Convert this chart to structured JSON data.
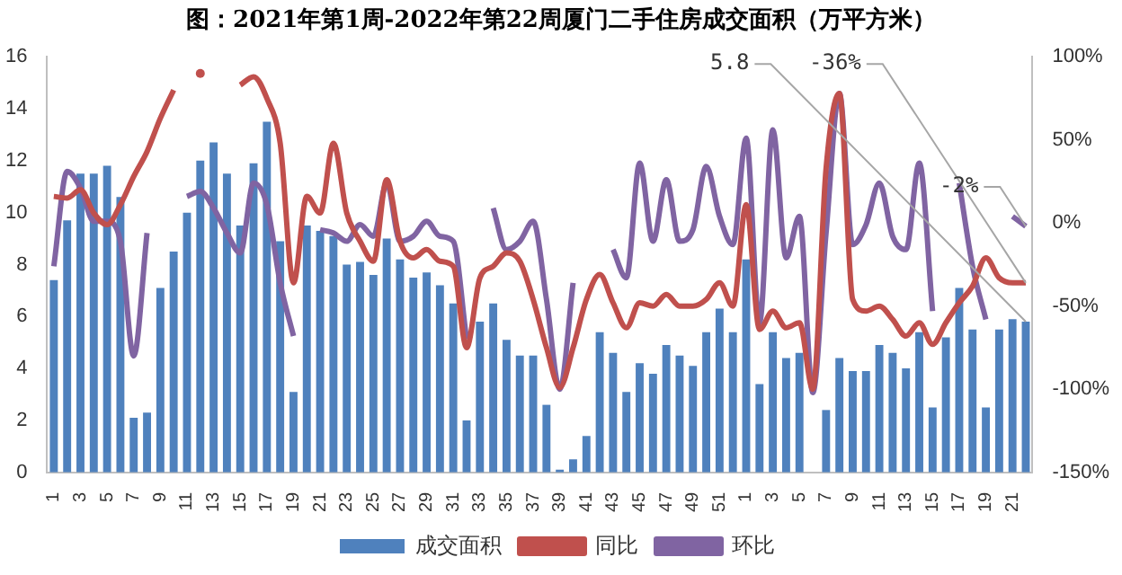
{
  "chart_data": {
    "type": "bar",
    "title": "图：2021年第1周-2022年第22周厦门二手住房成交面积（万平方米）",
    "categories": [
      "1",
      null,
      "3",
      null,
      "5",
      null,
      "7",
      null,
      "9",
      null,
      "11",
      null,
      "13",
      null,
      "15",
      null,
      "17",
      null,
      "19",
      null,
      "21",
      null,
      "23",
      null,
      "25",
      null,
      "27",
      null,
      "29",
      null,
      "31",
      null,
      "33",
      null,
      "35",
      null,
      "37",
      null,
      "39",
      null,
      "41",
      null,
      "43",
      null,
      "45",
      null,
      "47",
      null,
      "49",
      null,
      "51",
      null,
      "1",
      null,
      "3",
      null,
      "5",
      null,
      "7",
      null,
      "9",
      null,
      "11",
      null,
      "13",
      null,
      "15",
      null,
      "17",
      null,
      "19",
      null,
      "21",
      null
    ],
    "series": [
      {
        "name": "成交面积",
        "color": "#4f81bd",
        "values": [
          7.4,
          9.7,
          11.5,
          11.5,
          11.8,
          10.6,
          2.1,
          2.3,
          7.1,
          8.5,
          10.0,
          12.0,
          12.7,
          11.5,
          9.5,
          11.9,
          13.5,
          8.9,
          3.1,
          9.5,
          9.3,
          9.1,
          8.0,
          8.1,
          7.6,
          9.0,
          8.2,
          7.5,
          7.7,
          7.2,
          6.5,
          2.0,
          5.8,
          6.5,
          5.1,
          4.5,
          4.5,
          2.6,
          0.1,
          0.5,
          1.4,
          5.4,
          4.6,
          3.1,
          4.2,
          3.8,
          4.9,
          4.5,
          4.1,
          5.4,
          6.3,
          5.4,
          8.2,
          3.4,
          5.4,
          4.4,
          4.6,
          0,
          2.4,
          4.4,
          3.9,
          3.9,
          4.9,
          4.6,
          4.0,
          5.4,
          2.5,
          5.2,
          7.1,
          5.5,
          2.5,
          5.5,
          5.9,
          5.8
        ],
        "value_labels": [
          null,
          null,
          null,
          null,
          null,
          null,
          null,
          null,
          null,
          null,
          null,
          null,
          null,
          null,
          null,
          null,
          null,
          null,
          null,
          null,
          null,
          null,
          null,
          null,
          null,
          null,
          null,
          null,
          null,
          null,
          null,
          null,
          null,
          null,
          null,
          null,
          null,
          null,
          null,
          null,
          null,
          null,
          null,
          null,
          null,
          null,
          null,
          null,
          null,
          null,
          null,
          null,
          null,
          null,
          null,
          null,
          null,
          null,
          null,
          null,
          null,
          null,
          null,
          null,
          null,
          null,
          null,
          null,
          null,
          null,
          null,
          null,
          null,
          "5.8"
        ]
      },
      {
        "name": "同比",
        "type": "line",
        "axis": "y2",
        "color": "#c0504d",
        "values": [
          16,
          15,
          20,
          6,
          -1,
          11,
          28,
          43,
          63,
          80,
          null,
          90,
          null,
          null,
          83,
          88,
          75,
          48,
          -36,
          16,
          6,
          48,
          6,
          -11,
          -23,
          26,
          -11,
          -21,
          -16,
          -23,
          -26,
          -75,
          -33,
          -26,
          -18,
          -23,
          -46,
          -75,
          -99,
          -75,
          -46,
          -31,
          -48,
          -63,
          -48,
          -50,
          -43,
          -50,
          -50,
          -46,
          -36,
          -50,
          11,
          -64,
          -53,
          -63,
          -60,
          -100,
          33,
          78,
          -46,
          -53,
          -50,
          -58,
          -68,
          -60,
          -73,
          -60,
          -48,
          -38,
          -21,
          -33,
          -36,
          -36
        ],
        "value_labels": [
          null,
          null,
          null,
          null,
          null,
          null,
          null,
          null,
          null,
          null,
          null,
          null,
          null,
          null,
          null,
          null,
          null,
          null,
          null,
          null,
          null,
          null,
          null,
          null,
          null,
          null,
          null,
          null,
          null,
          null,
          null,
          null,
          null,
          null,
          null,
          null,
          null,
          null,
          null,
          null,
          null,
          null,
          null,
          null,
          null,
          null,
          null,
          null,
          null,
          null,
          null,
          null,
          null,
          null,
          null,
          null,
          null,
          null,
          null,
          null,
          null,
          null,
          null,
          null,
          null,
          null,
          null,
          null,
          null,
          null,
          null,
          null,
          null,
          "-36%"
        ]
      },
      {
        "name": "环比",
        "type": "line",
        "axis": "y2",
        "color": "#8064a2",
        "values": [
          -26,
          31,
          21,
          1,
          1,
          -11,
          -80,
          -6,
          null,
          null,
          16,
          19,
          9,
          -6,
          -18,
          24,
          11,
          -36,
          -68,
          null,
          -4,
          -6,
          -11,
          -1,
          -8,
          24,
          -11,
          -8,
          1,
          -8,
          -11,
          -70,
          null,
          9,
          -16,
          -11,
          1,
          -46,
          -100,
          -36,
          null,
          null,
          -16,
          -33,
          36,
          -11,
          26,
          -11,
          -4,
          34,
          4,
          -13,
          51,
          -60,
          56,
          -21,
          4,
          -102,
          -6,
          78,
          -13,
          -1,
          24,
          -8,
          -16,
          36,
          -53,
          null,
          24,
          -26,
          -58,
          null,
          4,
          -2
        ],
        "value_labels": [
          null,
          null,
          null,
          null,
          null,
          null,
          null,
          null,
          null,
          null,
          null,
          null,
          null,
          null,
          null,
          null,
          null,
          null,
          null,
          null,
          null,
          null,
          null,
          null,
          null,
          null,
          null,
          null,
          null,
          null,
          null,
          null,
          null,
          null,
          null,
          null,
          null,
          null,
          null,
          null,
          null,
          null,
          null,
          null,
          null,
          null,
          null,
          null,
          null,
          null,
          null,
          null,
          null,
          null,
          null,
          null,
          null,
          null,
          null,
          null,
          null,
          null,
          null,
          null,
          null,
          null,
          null,
          null,
          null,
          null,
          null,
          null,
          null,
          "-2%"
        ]
      }
    ],
    "ylim": [
      0,
      16
    ],
    "yticks": [
      0,
      2,
      4,
      6,
      8,
      10,
      12,
      14,
      16
    ],
    "y2lim": [
      -150,
      100
    ],
    "y2ticks": [
      {
        "value": -150,
        "label": "-150%"
      },
      {
        "value": -100,
        "label": "-100%"
      },
      {
        "value": -50,
        "label": "-50%"
      },
      {
        "value": 0,
        "label": "0%"
      },
      {
        "value": 50,
        "label": "50%"
      },
      {
        "value": 100,
        "label": "100%"
      }
    ],
    "grid": false,
    "legend": "bottom"
  }
}
